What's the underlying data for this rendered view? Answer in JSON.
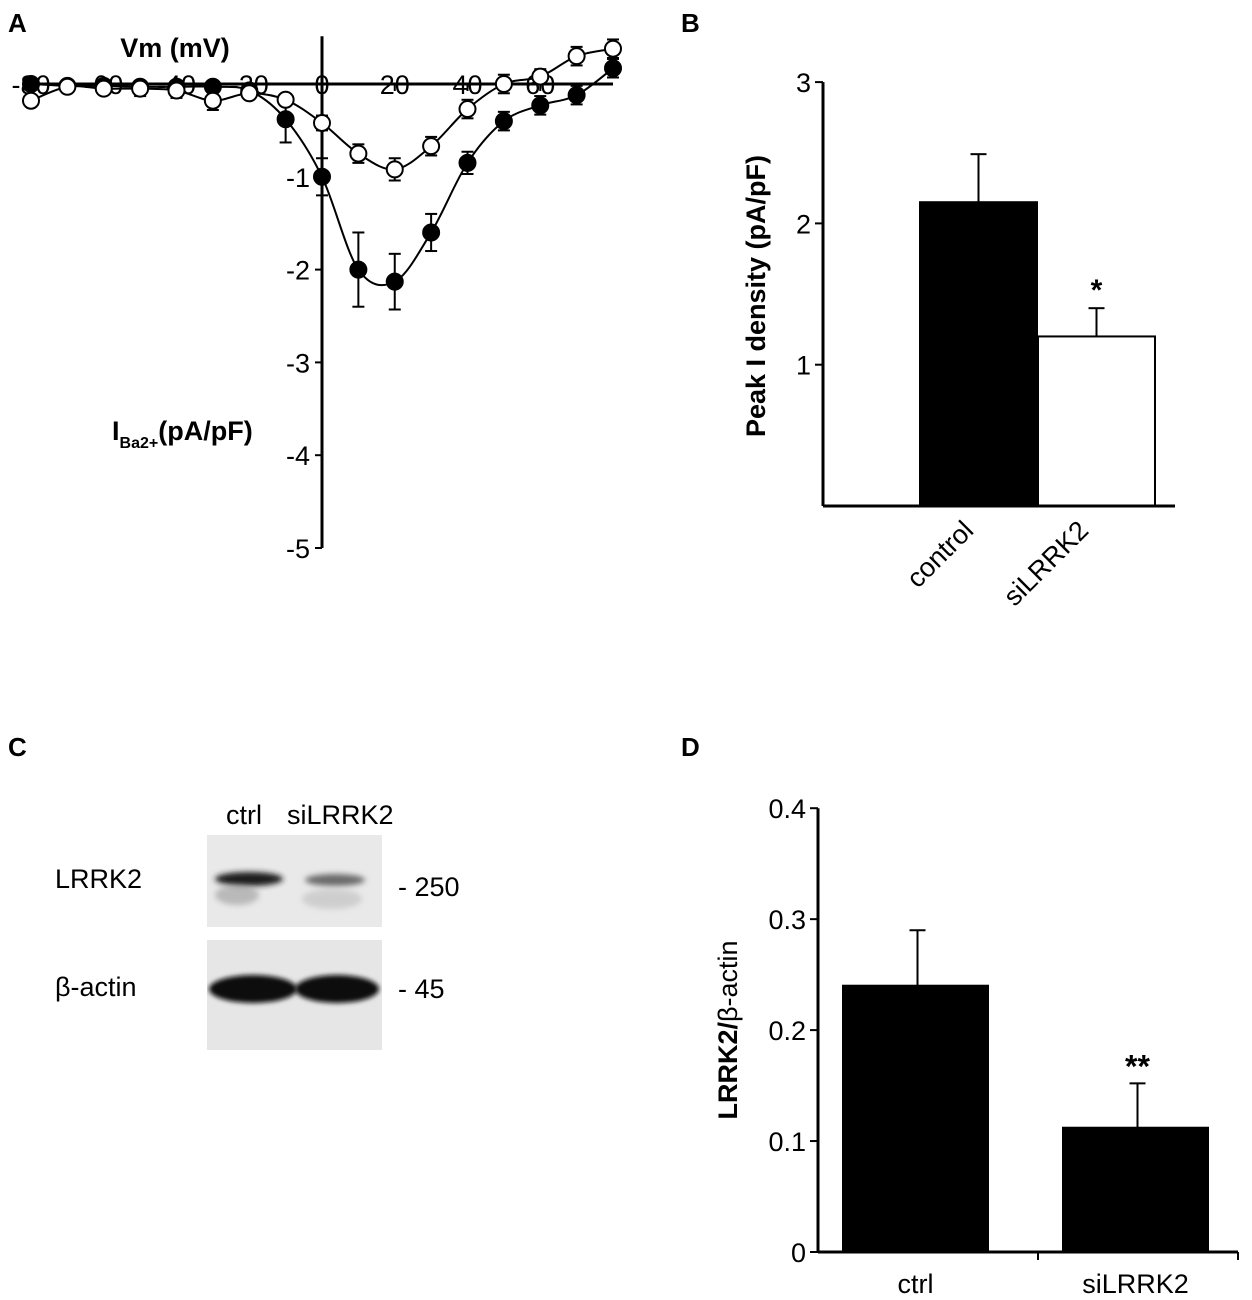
{
  "panels": {
    "a": "A",
    "b": "B",
    "c": "C",
    "d": "D"
  },
  "chart_data": [
    {
      "id": "A",
      "type": "line",
      "xlabel": "Vm (mV)",
      "ylabel_main": "I",
      "ylabel_sub": "Ba2+",
      "ylabel_tail": "(pA/pF)",
      "xlim": [
        -80,
        80
      ],
      "ylim": [
        -5,
        0.45
      ],
      "x_ticks": [
        -80,
        -60,
        -40,
        -20,
        0,
        20,
        40,
        60
      ],
      "y_ticks": [
        -1,
        -2,
        -3,
        -4,
        -5
      ],
      "x_tick_labels": [
        "-80",
        "-60",
        "-40",
        "-20",
        "0",
        "20",
        "40",
        "60"
      ],
      "y_tick_labels": [
        "-1",
        "-2",
        "-3",
        "-4",
        "-5"
      ],
      "series": [
        {
          "marker": "filled",
          "color": "#000000",
          "x": [
            -80,
            -70,
            -60,
            -50,
            -40,
            -30,
            -20,
            -10,
            0,
            10,
            20,
            30,
            40,
            50,
            60,
            70,
            80
          ],
          "y": [
            0.0,
            -0.02,
            -0.02,
            -0.03,
            -0.03,
            -0.03,
            -0.07,
            -0.38,
            -1.0,
            -2.0,
            -2.13,
            -1.6,
            -0.85,
            -0.4,
            -0.23,
            -0.12,
            0.17
          ],
          "err": [
            0.03,
            0.03,
            0.05,
            0.05,
            0.05,
            0.05,
            0.05,
            0.25,
            0.2,
            0.4,
            0.3,
            0.2,
            0.12,
            0.1,
            0.1,
            0.1,
            0.1
          ]
        },
        {
          "marker": "open",
          "color": "#000000",
          "x": [
            -80,
            -70,
            -60,
            -50,
            -40,
            -30,
            -20,
            -10,
            0,
            10,
            20,
            30,
            40,
            50,
            60,
            70,
            80
          ],
          "y": [
            -0.18,
            -0.03,
            -0.05,
            -0.05,
            -0.07,
            -0.18,
            -0.1,
            -0.17,
            -0.42,
            -0.75,
            -0.92,
            -0.67,
            -0.27,
            0.0,
            0.08,
            0.3,
            0.38
          ],
          "err": [
            0.03,
            0.03,
            0.05,
            0.08,
            0.08,
            0.1,
            0.05,
            0.05,
            0.08,
            0.1,
            0.12,
            0.1,
            0.1,
            0.1,
            0.08,
            0.1,
            0.1
          ]
        }
      ]
    },
    {
      "id": "B",
      "type": "bar",
      "ylabel": "Peak I density (pA/pF)",
      "ylim": [
        0,
        3
      ],
      "y_ticks": [
        1,
        2,
        3
      ],
      "y_tick_labels": [
        "1",
        "2",
        "3"
      ],
      "categories": [
        "control",
        "siLRRK2"
      ],
      "values": [
        2.15,
        1.2
      ],
      "errors": [
        0.34,
        0.2
      ],
      "fills": [
        "#000000",
        "#ffffff"
      ],
      "annotations": [
        "",
        "*"
      ]
    },
    {
      "id": "D",
      "type": "bar",
      "ylabel_part1": "LRRK2/",
      "ylabel_part2": "β-actin",
      "ylim": [
        0,
        0.4
      ],
      "y_ticks": [
        0,
        0.1,
        0.2,
        0.3,
        0.4
      ],
      "y_tick_labels": [
        "0",
        "0.1",
        "0.2",
        "0.3",
        "0.4"
      ],
      "categories": [
        "ctrl",
        "siLRRK2"
      ],
      "values": [
        0.24,
        0.112
      ],
      "errors": [
        0.05,
        0.04
      ],
      "fills": [
        "#000000",
        "#000000"
      ],
      "annotations": [
        "",
        "**"
      ]
    }
  ],
  "blot": {
    "lanes": [
      "ctrl",
      "siLRRK2"
    ],
    "rows": [
      {
        "protein": "LRRK2",
        "marker": "- 250"
      },
      {
        "protein": "β-actin",
        "marker": "- 45"
      }
    ]
  }
}
